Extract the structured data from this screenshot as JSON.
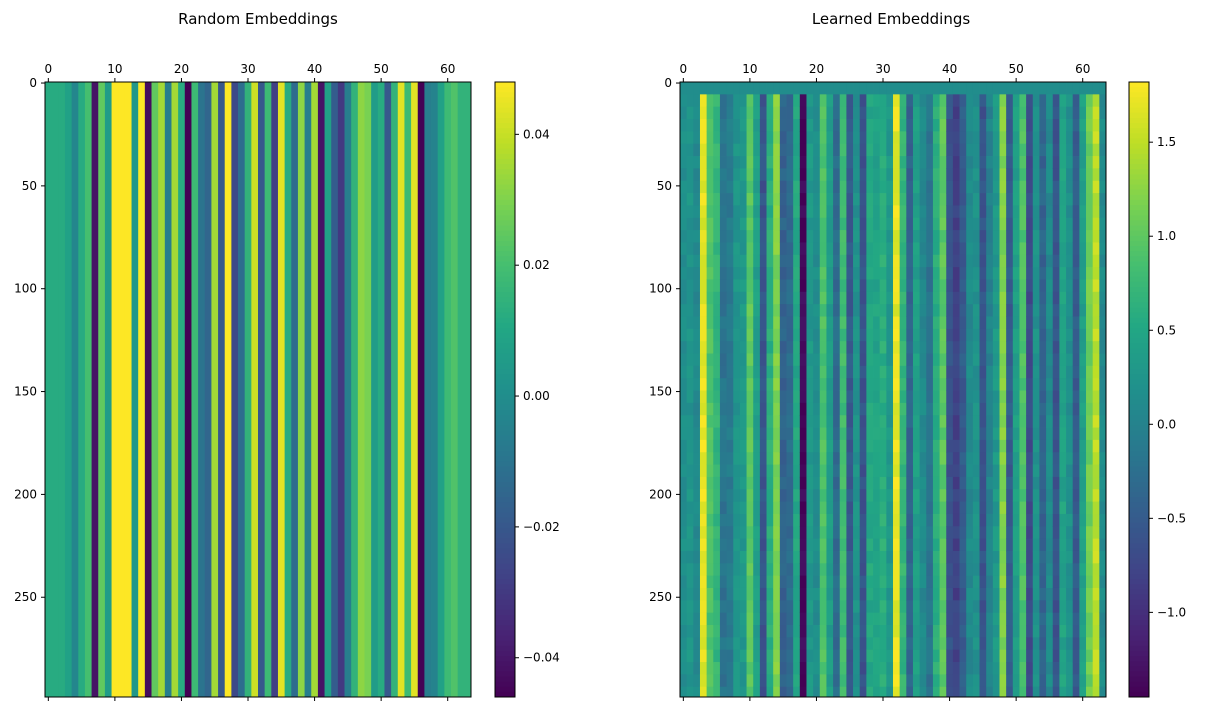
{
  "chart_data": [
    {
      "type": "heatmap",
      "title": "Random Embeddings",
      "xlabel": "",
      "ylabel": "",
      "x_ticks": [
        0,
        10,
        20,
        30,
        40,
        50,
        60
      ],
      "y_ticks": [
        0,
        50,
        100,
        150,
        200,
        250
      ],
      "xlim": [
        -0.5,
        63.5
      ],
      "ylim": [
        298.5,
        -0.5
      ],
      "colormap": "viridis",
      "colorbar": {
        "vmin": -0.046,
        "vmax": 0.048,
        "ticks": [
          -0.04,
          -0.02,
          0.0,
          0.02,
          0.04
        ],
        "tick_labels": [
          "−0.04",
          "−0.02",
          "0.00",
          "0.02",
          "0.04"
        ]
      },
      "rows": 299,
      "first_row": null,
      "column_values": [
        0.012,
        0.012,
        0.012,
        0.008,
        -0.003,
        0.012,
        0.02,
        -0.041,
        0.025,
        0.006,
        0.048,
        0.048,
        0.048,
        0.004,
        0.048,
        -0.043,
        0.025,
        0.035,
        -0.006,
        0.035,
        0.012,
        -0.046,
        0.018,
        -0.01,
        -0.015,
        0.035,
        -0.02,
        0.048,
        -0.025,
        -0.012,
        0.015,
        0.041,
        -0.02,
        0.018,
        -0.028,
        0.044,
        0.012,
        -0.013,
        0.032,
        -0.006,
        0.035,
        -0.041,
        0.008,
        -0.018,
        -0.03,
        -0.006,
        0.015,
        0.032,
        0.029,
        0.006,
        0.012,
        -0.02,
        0.015,
        0.044,
        0.018,
        0.044,
        -0.046,
        -0.006,
        -0.004,
        0.008,
        0.018,
        0.022,
        0.015,
        0.015
      ],
      "row_noise": 0.0
    },
    {
      "type": "heatmap",
      "title": "Learned Embeddings",
      "xlabel": "",
      "ylabel": "",
      "x_ticks": [
        0,
        10,
        20,
        30,
        40,
        50,
        60
      ],
      "y_ticks": [
        0,
        50,
        100,
        150,
        200,
        250
      ],
      "xlim": [
        -0.5,
        63.5
      ],
      "ylim": [
        298.5,
        -0.5
      ],
      "colormap": "viridis",
      "colorbar": {
        "vmin": -1.45,
        "vmax": 1.82,
        "ticks": [
          -1.0,
          -0.5,
          0.0,
          0.5,
          1.0,
          1.5
        ],
        "tick_labels": [
          "−1.0",
          "−0.5",
          "0.0",
          "0.5",
          "1.0",
          "1.5"
        ]
      },
      "rows": 299,
      "first_rows_count": 6,
      "first_row_value": 0.15,
      "column_values": [
        0.15,
        0.25,
        0.1,
        1.7,
        0.9,
        0.7,
        -0.2,
        -0.1,
        0.25,
        0.3,
        1.0,
        0.4,
        -0.6,
        0.6,
        1.2,
        -0.4,
        -0.3,
        0.5,
        -1.4,
        0.3,
        0.15,
        0.9,
        0.35,
        -0.3,
        0.8,
        -0.5,
        0.2,
        -0.6,
        0.5,
        0.45,
        0.6,
        0.3,
        1.7,
        0.7,
        -0.4,
        0.4,
        0.1,
        -0.2,
        0.6,
        1.0,
        -0.6,
        -0.8,
        -0.5,
        0.1,
        0.2,
        -0.6,
        0.0,
        0.3,
        1.2,
        -0.5,
        0.4,
        0.9,
        -0.7,
        0.2,
        -0.4,
        0.1,
        -0.6,
        0.45,
        0.2,
        -0.5,
        0.4,
        1.1,
        1.5,
        0.1
      ],
      "row_noise": 0.12
    }
  ]
}
